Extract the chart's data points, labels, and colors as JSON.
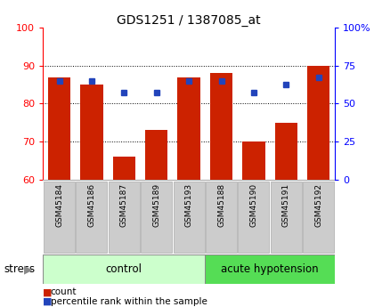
{
  "title": "GDS1251 / 1387085_at",
  "samples": [
    "GSM45184",
    "GSM45186",
    "GSM45187",
    "GSM45189",
    "GSM45193",
    "GSM45188",
    "GSM45190",
    "GSM45191",
    "GSM45192"
  ],
  "count_values": [
    87,
    85,
    66,
    73,
    87,
    88,
    70,
    75,
    90
  ],
  "percentile_values_left": [
    86,
    86,
    83,
    83,
    86,
    86,
    83,
    85,
    87
  ],
  "ylim_left": [
    60,
    100
  ],
  "ylim_right": [
    0,
    100
  ],
  "yticks_left": [
    60,
    70,
    80,
    90,
    100
  ],
  "ytick_labels_left": [
    "60",
    "70",
    "80",
    "90",
    "100"
  ],
  "yticks_right": [
    0,
    25,
    50,
    75,
    100
  ],
  "ytick_labels_right": [
    "0",
    "25",
    "50",
    "75",
    "100%"
  ],
  "n_control": 5,
  "n_acute": 4,
  "bar_color": "#cc2200",
  "dot_color": "#2244bb",
  "control_bg": "#ccffcc",
  "acute_bg": "#55dd55",
  "tick_label_bg": "#cccccc",
  "stress_label": "stress",
  "control_label": "control",
  "acute_label": "acute hypotension",
  "grid_vals": [
    70,
    80,
    90
  ]
}
